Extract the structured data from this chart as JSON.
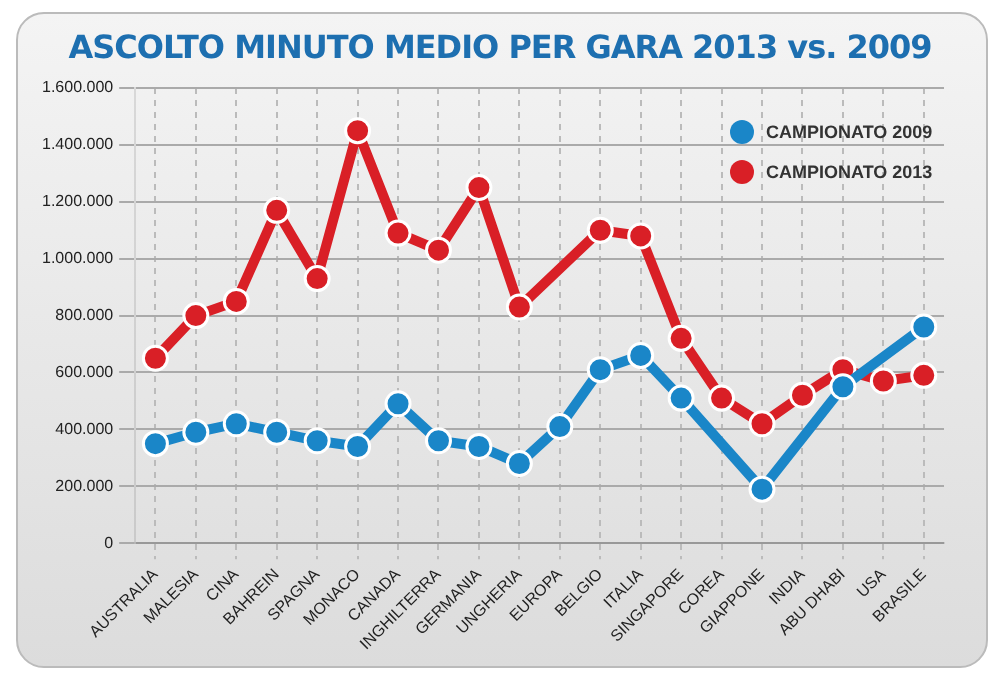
{
  "chart_data": {
    "type": "line",
    "title": "ASCOLTO MINUTO MEDIO PER GARA 2013 vs. 2009",
    "categories": [
      "AUSTRALIA",
      "MALESIA",
      "CINA",
      "BAHREIN",
      "SPAGNA",
      "MONACO",
      "CANADA",
      "INGHILTERRA",
      "GERMANIA",
      "UNGHERIA",
      "EUROPA",
      "BELGIO",
      "ITALIA",
      "SINGAPORE",
      "COREA",
      "GIAPPONE",
      "INDIA",
      "ABU DHABI",
      "USA",
      "BRASILE"
    ],
    "series": [
      {
        "name": "CAMPIONATO 2009",
        "color": "#1a86c8",
        "values": [
          350000,
          390000,
          420000,
          390000,
          360000,
          340000,
          490000,
          360000,
          340000,
          280000,
          410000,
          610000,
          660000,
          510000,
          null,
          190000,
          null,
          550000,
          null,
          760000
        ]
      },
      {
        "name": "CAMPIONATO 2013",
        "color": "#d91f26",
        "values": [
          650000,
          800000,
          850000,
          1170000,
          930000,
          1450000,
          1090000,
          1030000,
          1250000,
          830000,
          null,
          1100000,
          1080000,
          720000,
          510000,
          420000,
          520000,
          610000,
          570000,
          590000
        ]
      }
    ],
    "ylim": [
      0,
      1600000
    ],
    "yticks": [
      {
        "value": 0,
        "label": "0"
      },
      {
        "value": 200000,
        "label": "200.000"
      },
      {
        "value": 400000,
        "label": "400.000"
      },
      {
        "value": 600000,
        "label": "600.000"
      },
      {
        "value": 800000,
        "label": "800.000"
      },
      {
        "value": 1000000,
        "label": "1.000.000"
      },
      {
        "value": 1200000,
        "label": "1.200.000"
      },
      {
        "value": 1400000,
        "label": "1.400.000"
      },
      {
        "value": 1600000,
        "label": "1.600.000"
      }
    ],
    "grid": true,
    "legend": "top right",
    "marker": "circle",
    "line_style": "solid"
  }
}
